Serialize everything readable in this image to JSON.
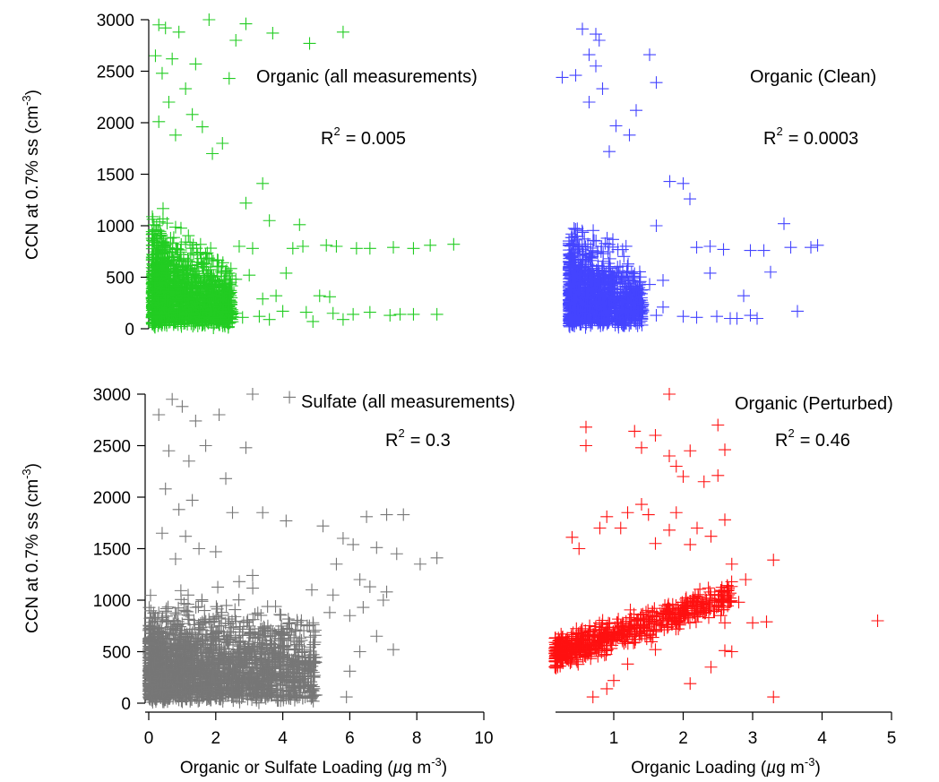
{
  "chart_data": [
    {
      "type": "scatter",
      "marker": "plus",
      "color": "#22cc22",
      "ylabel": "CCN at 0.7% ss (cm-3)",
      "xlabel": "",
      "xlim": [
        0,
        10
      ],
      "ylim": [
        0,
        3000
      ],
      "yticks": [
        "0",
        "500",
        "1000",
        "1500",
        "2000",
        "2500",
        "3000"
      ],
      "xticks": [],
      "annotation": {
        "title": "Organic (all measurements)",
        "r2": "= 0.005"
      },
      "cluster": {
        "x_range": [
          0.1,
          2.5
        ],
        "y_range": [
          0,
          1650
        ],
        "count": 1400
      },
      "points": [
        {
          "x": 0.3,
          "y": 2950
        },
        {
          "x": 0.5,
          "y": 2920
        },
        {
          "x": 1.8,
          "y": 3000
        },
        {
          "x": 2.9,
          "y": 2960
        },
        {
          "x": 0.9,
          "y": 2880
        },
        {
          "x": 2.6,
          "y": 2800
        },
        {
          "x": 3.7,
          "y": 2870
        },
        {
          "x": 4.8,
          "y": 2770
        },
        {
          "x": 5.8,
          "y": 2880
        },
        {
          "x": 0.2,
          "y": 2650
        },
        {
          "x": 0.7,
          "y": 2620
        },
        {
          "x": 1.4,
          "y": 2570
        },
        {
          "x": 0.4,
          "y": 2480
        },
        {
          "x": 2.4,
          "y": 2430
        },
        {
          "x": 1.1,
          "y": 2330
        },
        {
          "x": 0.6,
          "y": 2200
        },
        {
          "x": 1.3,
          "y": 2080
        },
        {
          "x": 0.3,
          "y": 2010
        },
        {
          "x": 1.6,
          "y": 1960
        },
        {
          "x": 0.8,
          "y": 1880
        },
        {
          "x": 2.2,
          "y": 1800
        },
        {
          "x": 1.9,
          "y": 1700
        },
        {
          "x": 3.4,
          "y": 1410
        },
        {
          "x": 2.9,
          "y": 1220
        },
        {
          "x": 3.6,
          "y": 1050
        },
        {
          "x": 4.5,
          "y": 1010
        },
        {
          "x": 2.7,
          "y": 800
        },
        {
          "x": 3.1,
          "y": 780
        },
        {
          "x": 4.3,
          "y": 780
        },
        {
          "x": 4.6,
          "y": 800
        },
        {
          "x": 5.3,
          "y": 810
        },
        {
          "x": 5.6,
          "y": 800
        },
        {
          "x": 6.2,
          "y": 780
        },
        {
          "x": 6.6,
          "y": 780
        },
        {
          "x": 7.3,
          "y": 790
        },
        {
          "x": 7.9,
          "y": 780
        },
        {
          "x": 8.4,
          "y": 810
        },
        {
          "x": 9.1,
          "y": 820
        },
        {
          "x": 4.1,
          "y": 540
        },
        {
          "x": 3.0,
          "y": 520
        },
        {
          "x": 2.6,
          "y": 480
        },
        {
          "x": 5.1,
          "y": 320
        },
        {
          "x": 3.8,
          "y": 320
        },
        {
          "x": 5.4,
          "y": 310
        },
        {
          "x": 3.4,
          "y": 290
        },
        {
          "x": 4.0,
          "y": 170
        },
        {
          "x": 4.7,
          "y": 160
        },
        {
          "x": 5.5,
          "y": 150
        },
        {
          "x": 6.1,
          "y": 140
        },
        {
          "x": 6.6,
          "y": 160
        },
        {
          "x": 7.2,
          "y": 130
        },
        {
          "x": 7.5,
          "y": 140
        },
        {
          "x": 7.9,
          "y": 140
        },
        {
          "x": 8.6,
          "y": 140
        },
        {
          "x": 3.3,
          "y": 120
        },
        {
          "x": 3.6,
          "y": 90
        },
        {
          "x": 4.9,
          "y": 70
        },
        {
          "x": 5.8,
          "y": 90
        },
        {
          "x": 2.6,
          "y": 150
        },
        {
          "x": 2.8,
          "y": 110
        }
      ]
    },
    {
      "type": "scatter",
      "marker": "plus",
      "color": "#4444ff",
      "xlim": [
        0,
        5
      ],
      "ylim": [
        0,
        3000
      ],
      "annotation": {
        "title": "Organic (Clean)",
        "r2": "= 0.0003"
      },
      "cluster": {
        "x_range": [
          0.2,
          1.3
        ],
        "y_range": [
          0,
          1600
        ],
        "count": 1200
      },
      "points": [
        {
          "x": 0.4,
          "y": 2910
        },
        {
          "x": 0.6,
          "y": 2860
        },
        {
          "x": 0.65,
          "y": 2800
        },
        {
          "x": 0.5,
          "y": 2660
        },
        {
          "x": 1.4,
          "y": 2660
        },
        {
          "x": 0.6,
          "y": 2550
        },
        {
          "x": 0.1,
          "y": 2440
        },
        {
          "x": 0.3,
          "y": 2460
        },
        {
          "x": 0.7,
          "y": 2330
        },
        {
          "x": 1.5,
          "y": 2390
        },
        {
          "x": 1.2,
          "y": 2120
        },
        {
          "x": 0.5,
          "y": 2200
        },
        {
          "x": 0.9,
          "y": 1970
        },
        {
          "x": 1.1,
          "y": 1880
        },
        {
          "x": 0.8,
          "y": 1720
        },
        {
          "x": 1.9,
          "y": 1410
        },
        {
          "x": 1.7,
          "y": 1430
        },
        {
          "x": 2.0,
          "y": 1260
        },
        {
          "x": 1.5,
          "y": 1000
        },
        {
          "x": 3.4,
          "y": 1020
        },
        {
          "x": 2.1,
          "y": 790
        },
        {
          "x": 2.3,
          "y": 800
        },
        {
          "x": 2.5,
          "y": 770
        },
        {
          "x": 2.9,
          "y": 760
        },
        {
          "x": 3.1,
          "y": 760
        },
        {
          "x": 3.5,
          "y": 790
        },
        {
          "x": 3.8,
          "y": 790
        },
        {
          "x": 3.9,
          "y": 810
        },
        {
          "x": 2.3,
          "y": 540
        },
        {
          "x": 3.2,
          "y": 550
        },
        {
          "x": 1.6,
          "y": 470
        },
        {
          "x": 1.4,
          "y": 430
        },
        {
          "x": 2.8,
          "y": 320
        },
        {
          "x": 1.6,
          "y": 210
        },
        {
          "x": 3.6,
          "y": 170
        },
        {
          "x": 1.9,
          "y": 120
        },
        {
          "x": 2.1,
          "y": 110
        },
        {
          "x": 2.4,
          "y": 120
        },
        {
          "x": 2.7,
          "y": 100
        },
        {
          "x": 2.6,
          "y": 100
        },
        {
          "x": 3.0,
          "y": 100
        },
        {
          "x": 1.5,
          "y": 130
        },
        {
          "x": 1.3,
          "y": 180
        },
        {
          "x": 2.9,
          "y": 130
        }
      ]
    },
    {
      "type": "scatter",
      "marker": "plus",
      "color": "#777777",
      "ylabel": "CCN  at 0.7% ss (cm-3)",
      "xlabel": "Organic or Sulfate Loading (µg m-3)",
      "xlim": [
        0,
        10
      ],
      "ylim": [
        0,
        3000
      ],
      "yticks": [
        "0",
        "500",
        "1000",
        "1500",
        "2000",
        "2500",
        "3000"
      ],
      "xticks": [
        "0",
        "2",
        "4",
        "6",
        "8",
        "10"
      ],
      "annotation": {
        "title": "Sulfate (all measurements)",
        "r2": "= 0.3"
      },
      "cluster": {
        "x_range": [
          0,
          5
        ],
        "y_range": [
          0,
          1400
        ],
        "count": 2200
      },
      "points": [
        {
          "x": 0.7,
          "y": 2950
        },
        {
          "x": 1.0,
          "y": 2880
        },
        {
          "x": 0.3,
          "y": 2800
        },
        {
          "x": 1.4,
          "y": 2740
        },
        {
          "x": 2.1,
          "y": 2800
        },
        {
          "x": 3.1,
          "y": 3000
        },
        {
          "x": 4.2,
          "y": 2970
        },
        {
          "x": 0.6,
          "y": 2450
        },
        {
          "x": 1.7,
          "y": 2500
        },
        {
          "x": 2.9,
          "y": 2480
        },
        {
          "x": 1.2,
          "y": 2350
        },
        {
          "x": 2.3,
          "y": 2180
        },
        {
          "x": 0.5,
          "y": 2080
        },
        {
          "x": 1.3,
          "y": 1970
        },
        {
          "x": 0.9,
          "y": 1880
        },
        {
          "x": 2.5,
          "y": 1850
        },
        {
          "x": 3.4,
          "y": 1850
        },
        {
          "x": 4.1,
          "y": 1770
        },
        {
          "x": 5.2,
          "y": 1720
        },
        {
          "x": 6.5,
          "y": 1810
        },
        {
          "x": 7.1,
          "y": 1830
        },
        {
          "x": 7.6,
          "y": 1830
        },
        {
          "x": 5.8,
          "y": 1600
        },
        {
          "x": 6.1,
          "y": 1540
        },
        {
          "x": 6.8,
          "y": 1510
        },
        {
          "x": 7.4,
          "y": 1450
        },
        {
          "x": 8.1,
          "y": 1350
        },
        {
          "x": 8.6,
          "y": 1410
        },
        {
          "x": 5.6,
          "y": 1350
        },
        {
          "x": 6.3,
          "y": 1200
        },
        {
          "x": 6.6,
          "y": 1130
        },
        {
          "x": 7.1,
          "y": 1080
        },
        {
          "x": 5.5,
          "y": 1050
        },
        {
          "x": 6.4,
          "y": 930
        },
        {
          "x": 7.0,
          "y": 1000
        },
        {
          "x": 5.4,
          "y": 880
        },
        {
          "x": 6.0,
          "y": 850
        },
        {
          "x": 6.8,
          "y": 650
        },
        {
          "x": 6.3,
          "y": 500
        },
        {
          "x": 7.3,
          "y": 520
        },
        {
          "x": 6.0,
          "y": 310
        },
        {
          "x": 5.9,
          "y": 60
        },
        {
          "x": 3.1,
          "y": 1240
        },
        {
          "x": 2.7,
          "y": 1180
        },
        {
          "x": 0.8,
          "y": 1400
        },
        {
          "x": 1.5,
          "y": 1500
        },
        {
          "x": 0.4,
          "y": 1650
        },
        {
          "x": 1.1,
          "y": 1620
        },
        {
          "x": 2.0,
          "y": 1470
        }
      ]
    },
    {
      "type": "scatter",
      "marker": "plus",
      "color": "#ff1111",
      "xlabel": "Organic Loading (µg m-3)",
      "xlim": [
        0,
        5
      ],
      "ylim": [
        0,
        3000
      ],
      "xticks": [
        "1",
        "2",
        "3",
        "4",
        "5"
      ],
      "annotation": {
        "title": "Organic (Perturbed)",
        "r2": "= 0.46"
      },
      "trend": {
        "x_start": 0.15,
        "x_end": 2.7,
        "y_start": 480,
        "y_end": 1050,
        "count": 650
      },
      "points": [
        {
          "x": 1.8,
          "y": 3000
        },
        {
          "x": 0.6,
          "y": 2680
        },
        {
          "x": 1.3,
          "y": 2640
        },
        {
          "x": 2.5,
          "y": 2700
        },
        {
          "x": 0.6,
          "y": 2500
        },
        {
          "x": 1.6,
          "y": 2600
        },
        {
          "x": 1.4,
          "y": 2480
        },
        {
          "x": 1.8,
          "y": 2400
        },
        {
          "x": 2.1,
          "y": 2450
        },
        {
          "x": 2.6,
          "y": 2460
        },
        {
          "x": 1.9,
          "y": 2300
        },
        {
          "x": 2.0,
          "y": 2200
        },
        {
          "x": 2.3,
          "y": 2150
        },
        {
          "x": 2.5,
          "y": 2210
        },
        {
          "x": 1.4,
          "y": 1930
        },
        {
          "x": 1.2,
          "y": 1850
        },
        {
          "x": 1.5,
          "y": 1830
        },
        {
          "x": 1.9,
          "y": 1850
        },
        {
          "x": 0.9,
          "y": 1810
        },
        {
          "x": 1.1,
          "y": 1700
        },
        {
          "x": 0.8,
          "y": 1700
        },
        {
          "x": 1.8,
          "y": 1680
        },
        {
          "x": 2.2,
          "y": 1700
        },
        {
          "x": 2.6,
          "y": 1780
        },
        {
          "x": 0.4,
          "y": 1610
        },
        {
          "x": 0.5,
          "y": 1500
        },
        {
          "x": 1.6,
          "y": 1550
        },
        {
          "x": 2.1,
          "y": 1540
        },
        {
          "x": 2.4,
          "y": 1620
        },
        {
          "x": 3.3,
          "y": 1390
        },
        {
          "x": 2.7,
          "y": 1350
        },
        {
          "x": 2.9,
          "y": 1200
        },
        {
          "x": 2.8,
          "y": 980
        },
        {
          "x": 3.0,
          "y": 780
        },
        {
          "x": 3.2,
          "y": 790
        },
        {
          "x": 2.6,
          "y": 780
        },
        {
          "x": 4.8,
          "y": 800
        },
        {
          "x": 2.7,
          "y": 500
        },
        {
          "x": 2.6,
          "y": 510
        },
        {
          "x": 2.4,
          "y": 350
        },
        {
          "x": 1.3,
          "y": 620
        },
        {
          "x": 1.6,
          "y": 520
        },
        {
          "x": 1.2,
          "y": 380
        },
        {
          "x": 1.0,
          "y": 220
        },
        {
          "x": 2.1,
          "y": 190
        },
        {
          "x": 0.7,
          "y": 60
        },
        {
          "x": 3.3,
          "y": 60
        },
        {
          "x": 0.9,
          "y": 140
        }
      ]
    }
  ]
}
